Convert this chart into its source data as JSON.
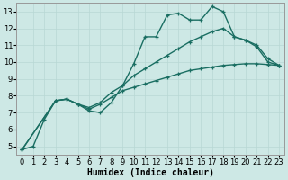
{
  "xlabel": "Humidex (Indice chaleur)",
  "xlim": [
    -0.5,
    23.5
  ],
  "ylim": [
    4.5,
    13.5
  ],
  "xticks": [
    0,
    1,
    2,
    3,
    4,
    5,
    6,
    7,
    8,
    9,
    10,
    11,
    12,
    13,
    14,
    15,
    16,
    17,
    18,
    19,
    20,
    21,
    22,
    23
  ],
  "yticks": [
    5,
    6,
    7,
    8,
    9,
    10,
    11,
    12,
    13
  ],
  "bg_color": "#cde8e5",
  "grid_color": "#b8d8d4",
  "line_color": "#1a6e62",
  "line1_x": [
    0,
    1,
    2,
    3,
    4,
    5,
    6,
    7,
    8,
    9,
    10,
    11,
    12,
    13,
    14,
    15,
    16,
    17,
    18,
    19,
    20,
    21,
    22,
    23
  ],
  "line1_y": [
    4.8,
    5.0,
    6.6,
    7.7,
    7.8,
    7.5,
    7.1,
    7.0,
    7.6,
    8.6,
    9.9,
    11.5,
    11.5,
    12.8,
    12.9,
    12.5,
    12.5,
    13.3,
    13.0,
    11.5,
    11.3,
    10.9,
    10.0,
    9.8
  ],
  "line2_x": [
    0,
    3,
    4,
    5,
    6,
    7,
    8,
    9,
    10,
    11,
    12,
    13,
    14,
    15,
    16,
    17,
    18,
    19,
    20,
    21,
    22,
    23
  ],
  "line2_y": [
    4.8,
    7.7,
    7.8,
    7.5,
    7.3,
    7.6,
    8.2,
    8.6,
    9.2,
    9.6,
    10.0,
    10.4,
    10.8,
    11.2,
    11.5,
    11.8,
    12.0,
    11.5,
    11.3,
    11.0,
    10.2,
    9.8
  ],
  "line3_x": [
    0,
    3,
    4,
    5,
    6,
    7,
    8,
    9,
    10,
    11,
    12,
    13,
    14,
    15,
    16,
    17,
    18,
    19,
    20,
    21,
    22,
    23
  ],
  "line3_y": [
    4.8,
    7.7,
    7.8,
    7.5,
    7.2,
    7.5,
    7.9,
    8.3,
    8.5,
    8.7,
    8.9,
    9.1,
    9.3,
    9.5,
    9.6,
    9.7,
    9.8,
    9.85,
    9.9,
    9.9,
    9.85,
    9.8
  ],
  "marker_size": 3.5,
  "linewidth": 1.0,
  "font_size": 7,
  "tick_font_size": 6
}
